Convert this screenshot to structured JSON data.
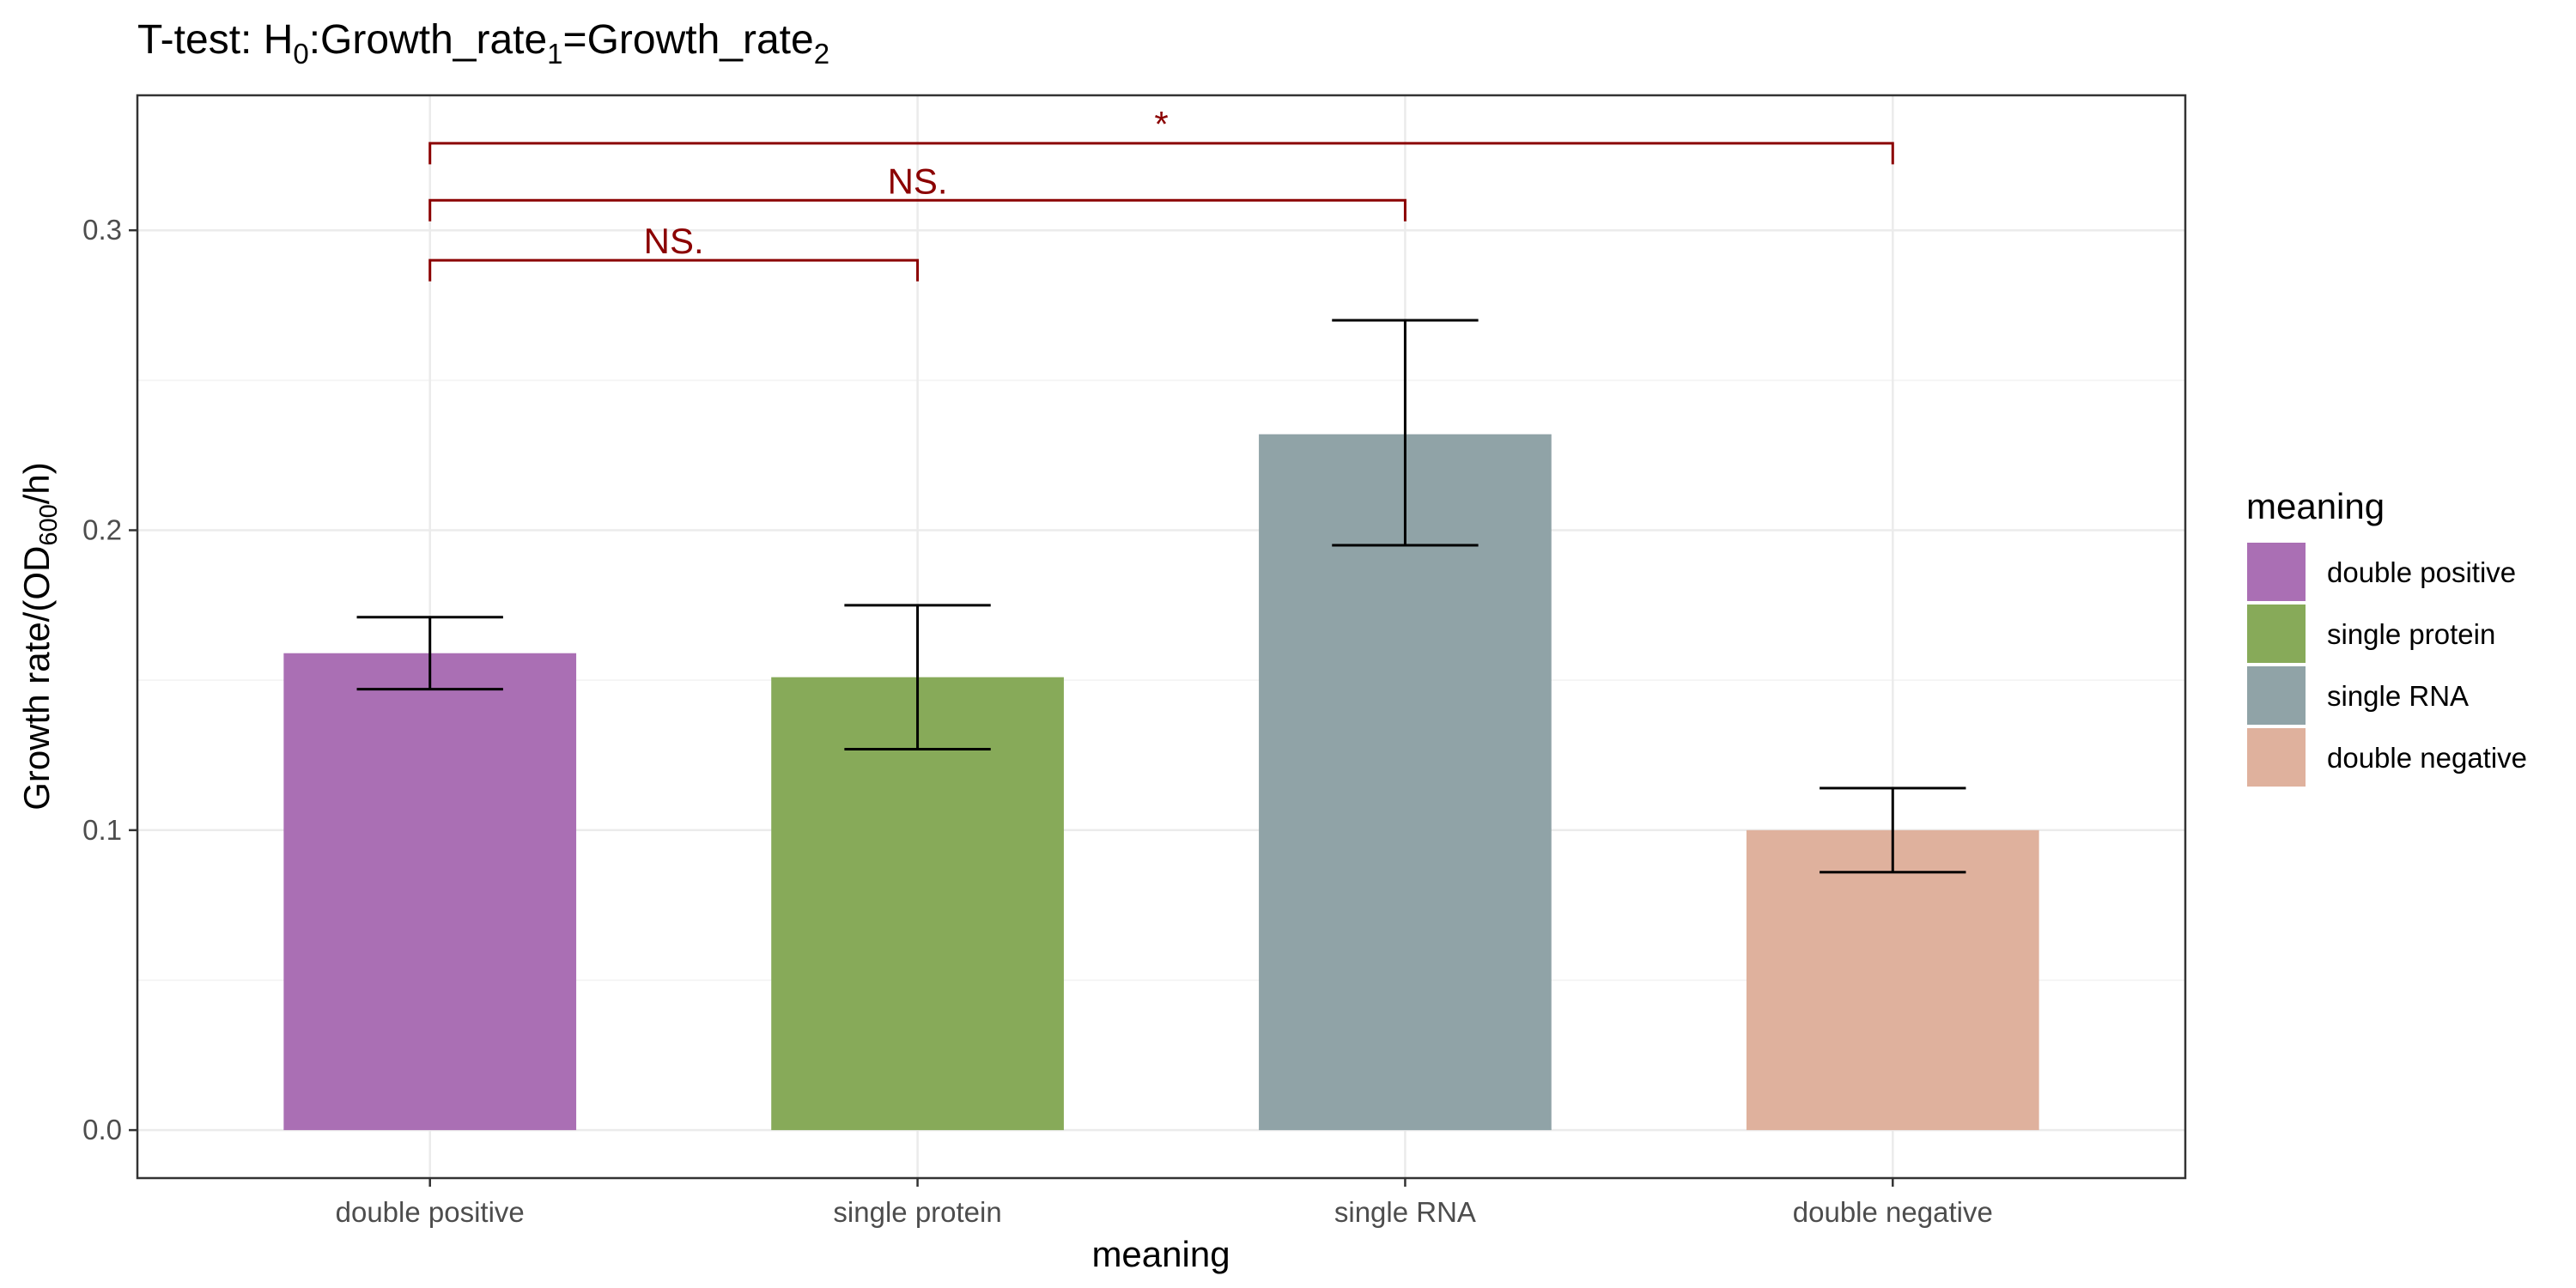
{
  "chart_data": {
    "type": "bar",
    "title": {
      "prefix": "T-test: H",
      "h_sub": "0",
      "mid1": ":Growth_rate",
      "sub1": "1",
      "mid2": "=Growth_rate",
      "sub2": "2"
    },
    "xlabel": "meaning",
    "ylabel": {
      "prefix": "Growth rate/(OD",
      "sub": "600",
      "suffix": "/h)"
    },
    "categories": [
      "double positive",
      "single protein",
      "single RNA",
      "double negative"
    ],
    "values": [
      0.159,
      0.151,
      0.232,
      0.1
    ],
    "error_bars": [
      {
        "low": 0.147,
        "high": 0.171
      },
      {
        "low": 0.127,
        "high": 0.175
      },
      {
        "low": 0.195,
        "high": 0.27
      },
      {
        "low": 0.086,
        "high": 0.114
      }
    ],
    "colors": [
      "#AA6FB4",
      "#87AA59",
      "#90A3A7",
      "#DFB19D"
    ],
    "ylim": [
      -0.016,
      0.345
    ],
    "yticks": [
      0.0,
      0.1,
      0.2,
      0.3
    ],
    "ytick_labels": [
      "0.0",
      "0.1",
      "0.2",
      "0.3"
    ],
    "grid": true,
    "legend": {
      "title": "meaning",
      "position": "right",
      "items": [
        "double positive",
        "single protein",
        "single RNA",
        "double negative"
      ]
    },
    "significance": [
      {
        "from": 0,
        "to": 1,
        "y": 0.29,
        "label": "NS."
      },
      {
        "from": 0,
        "to": 2,
        "y": 0.31,
        "label": "NS."
      },
      {
        "from": 0,
        "to": 3,
        "y": 0.329,
        "label": "*"
      }
    ],
    "significance_color": "#8B0000"
  }
}
